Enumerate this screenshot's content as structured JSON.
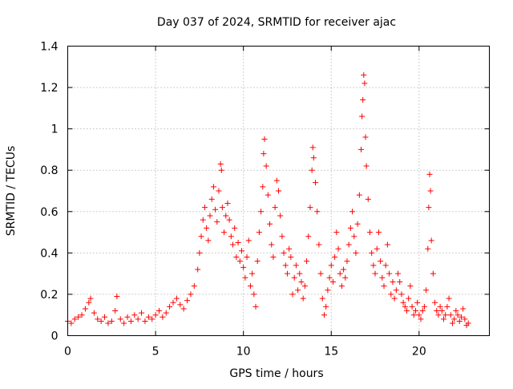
{
  "chart_data": {
    "type": "scatter",
    "title": "Day 037 of 2024, SRMTID for receiver ajac",
    "xlabel": "GPS time / hours",
    "ylabel": "SRMTID / TECUs",
    "xlim": [
      0,
      24
    ],
    "ylim": [
      0,
      1.4
    ],
    "xticks": [
      0,
      5,
      10,
      15,
      20
    ],
    "xtick_labels": [
      "0",
      "5",
      "10",
      "15",
      "20"
    ],
    "yticks": [
      0,
      0.2,
      0.4,
      0.6,
      0.8,
      1.0,
      1.2,
      1.4
    ],
    "ytick_labels": [
      "0",
      "0.2",
      "0.4",
      "0.6",
      "0.8",
      "1",
      "1.2",
      "1.4"
    ],
    "grid": true,
    "marker": "+",
    "color": "#ff0000",
    "series": [
      {
        "name": "SRMTID",
        "points": [
          [
            0.0,
            0.07
          ],
          [
            0.2,
            0.06
          ],
          [
            0.4,
            0.08
          ],
          [
            0.6,
            0.09
          ],
          [
            0.8,
            0.1
          ],
          [
            1.0,
            0.13
          ],
          [
            1.2,
            0.16
          ],
          [
            1.3,
            0.18
          ],
          [
            1.5,
            0.11
          ],
          [
            1.7,
            0.08
          ],
          [
            1.9,
            0.07
          ],
          [
            2.1,
            0.09
          ],
          [
            2.3,
            0.06
          ],
          [
            2.5,
            0.07
          ],
          [
            2.7,
            0.12
          ],
          [
            2.8,
            0.19
          ],
          [
            3.0,
            0.08
          ],
          [
            3.2,
            0.06
          ],
          [
            3.4,
            0.09
          ],
          [
            3.6,
            0.07
          ],
          [
            3.8,
            0.1
          ],
          [
            4.0,
            0.08
          ],
          [
            4.2,
            0.11
          ],
          [
            4.4,
            0.07
          ],
          [
            4.6,
            0.09
          ],
          [
            4.8,
            0.08
          ],
          [
            5.0,
            0.1
          ],
          [
            5.2,
            0.12
          ],
          [
            5.4,
            0.09
          ],
          [
            5.6,
            0.11
          ],
          [
            5.8,
            0.14
          ],
          [
            6.0,
            0.16
          ],
          [
            6.2,
            0.18
          ],
          [
            6.4,
            0.15
          ],
          [
            6.6,
            0.13
          ],
          [
            6.8,
            0.17
          ],
          [
            7.0,
            0.2
          ],
          [
            7.2,
            0.24
          ],
          [
            7.4,
            0.32
          ],
          [
            7.5,
            0.4
          ],
          [
            7.6,
            0.48
          ],
          [
            7.7,
            0.56
          ],
          [
            7.8,
            0.62
          ],
          [
            7.9,
            0.52
          ],
          [
            8.0,
            0.46
          ],
          [
            8.1,
            0.58
          ],
          [
            8.2,
            0.66
          ],
          [
            8.3,
            0.72
          ],
          [
            8.4,
            0.61
          ],
          [
            8.5,
            0.55
          ],
          [
            8.6,
            0.7
          ],
          [
            8.7,
            0.83
          ],
          [
            8.75,
            0.8
          ],
          [
            8.8,
            0.62
          ],
          [
            8.9,
            0.5
          ],
          [
            9.0,
            0.58
          ],
          [
            9.1,
            0.64
          ],
          [
            9.2,
            0.56
          ],
          [
            9.3,
            0.48
          ],
          [
            9.4,
            0.44
          ],
          [
            9.5,
            0.52
          ],
          [
            9.6,
            0.38
          ],
          [
            9.7,
            0.45
          ],
          [
            9.8,
            0.36
          ],
          [
            9.9,
            0.41
          ],
          [
            10.0,
            0.33
          ],
          [
            10.1,
            0.28
          ],
          [
            10.2,
            0.38
          ],
          [
            10.3,
            0.46
          ],
          [
            10.4,
            0.24
          ],
          [
            10.5,
            0.3
          ],
          [
            10.6,
            0.2
          ],
          [
            10.7,
            0.14
          ],
          [
            10.8,
            0.36
          ],
          [
            10.9,
            0.5
          ],
          [
            11.0,
            0.6
          ],
          [
            11.1,
            0.72
          ],
          [
            11.15,
            0.88
          ],
          [
            11.2,
            0.95
          ],
          [
            11.3,
            0.82
          ],
          [
            11.4,
            0.68
          ],
          [
            11.5,
            0.54
          ],
          [
            11.6,
            0.44
          ],
          [
            11.7,
            0.38
          ],
          [
            11.8,
            0.62
          ],
          [
            11.9,
            0.75
          ],
          [
            12.0,
            0.7
          ],
          [
            12.1,
            0.58
          ],
          [
            12.2,
            0.48
          ],
          [
            12.3,
            0.4
          ],
          [
            12.4,
            0.34
          ],
          [
            12.5,
            0.3
          ],
          [
            12.6,
            0.42
          ],
          [
            12.7,
            0.38
          ],
          [
            12.8,
            0.2
          ],
          [
            12.9,
            0.28
          ],
          [
            13.0,
            0.34
          ],
          [
            13.1,
            0.22
          ],
          [
            13.2,
            0.3
          ],
          [
            13.3,
            0.26
          ],
          [
            13.4,
            0.18
          ],
          [
            13.5,
            0.24
          ],
          [
            13.6,
            0.36
          ],
          [
            13.7,
            0.48
          ],
          [
            13.8,
            0.62
          ],
          [
            13.9,
            0.8
          ],
          [
            13.95,
            0.91
          ],
          [
            14.0,
            0.86
          ],
          [
            14.1,
            0.74
          ],
          [
            14.2,
            0.6
          ],
          [
            14.3,
            0.44
          ],
          [
            14.4,
            0.3
          ],
          [
            14.5,
            0.18
          ],
          [
            14.6,
            0.1
          ],
          [
            14.7,
            0.14
          ],
          [
            14.8,
            0.22
          ],
          [
            14.9,
            0.28
          ],
          [
            15.0,
            0.34
          ],
          [
            15.1,
            0.26
          ],
          [
            15.2,
            0.38
          ],
          [
            15.3,
            0.5
          ],
          [
            15.4,
            0.42
          ],
          [
            15.5,
            0.3
          ],
          [
            15.6,
            0.24
          ],
          [
            15.7,
            0.32
          ],
          [
            15.8,
            0.28
          ],
          [
            15.9,
            0.36
          ],
          [
            16.0,
            0.44
          ],
          [
            16.1,
            0.52
          ],
          [
            16.2,
            0.6
          ],
          [
            16.3,
            0.48
          ],
          [
            16.4,
            0.4
          ],
          [
            16.5,
            0.54
          ],
          [
            16.6,
            0.68
          ],
          [
            16.7,
            0.9
          ],
          [
            16.75,
            1.06
          ],
          [
            16.8,
            1.14
          ],
          [
            16.85,
            1.26
          ],
          [
            16.9,
            1.22
          ],
          [
            16.95,
            0.96
          ],
          [
            17.0,
            0.82
          ],
          [
            17.1,
            0.66
          ],
          [
            17.2,
            0.5
          ],
          [
            17.3,
            0.4
          ],
          [
            17.4,
            0.34
          ],
          [
            17.5,
            0.3
          ],
          [
            17.6,
            0.42
          ],
          [
            17.7,
            0.5
          ],
          [
            17.8,
            0.36
          ],
          [
            17.9,
            0.28
          ],
          [
            18.0,
            0.24
          ],
          [
            18.1,
            0.34
          ],
          [
            18.2,
            0.44
          ],
          [
            18.3,
            0.3
          ],
          [
            18.4,
            0.2
          ],
          [
            18.5,
            0.26
          ],
          [
            18.6,
            0.18
          ],
          [
            18.7,
            0.22
          ],
          [
            18.8,
            0.3
          ],
          [
            18.9,
            0.26
          ],
          [
            19.0,
            0.2
          ],
          [
            19.1,
            0.16
          ],
          [
            19.2,
            0.14
          ],
          [
            19.3,
            0.12
          ],
          [
            19.4,
            0.18
          ],
          [
            19.5,
            0.24
          ],
          [
            19.6,
            0.14
          ],
          [
            19.7,
            0.1
          ],
          [
            19.8,
            0.12
          ],
          [
            19.9,
            0.16
          ],
          [
            20.0,
            0.1
          ],
          [
            20.1,
            0.08
          ],
          [
            20.2,
            0.12
          ],
          [
            20.3,
            0.14
          ],
          [
            20.4,
            0.22
          ],
          [
            20.5,
            0.42
          ],
          [
            20.55,
            0.62
          ],
          [
            20.6,
            0.78
          ],
          [
            20.65,
            0.7
          ],
          [
            20.7,
            0.46
          ],
          [
            20.8,
            0.3
          ],
          [
            20.9,
            0.16
          ],
          [
            21.0,
            0.12
          ],
          [
            21.1,
            0.1
          ],
          [
            21.2,
            0.14
          ],
          [
            21.3,
            0.12
          ],
          [
            21.4,
            0.08
          ],
          [
            21.5,
            0.1
          ],
          [
            21.6,
            0.14
          ],
          [
            21.7,
            0.18
          ],
          [
            21.8,
            0.1
          ],
          [
            21.9,
            0.06
          ],
          [
            22.0,
            0.08
          ],
          [
            22.1,
            0.12
          ],
          [
            22.2,
            0.1
          ],
          [
            22.3,
            0.07
          ],
          [
            22.4,
            0.09
          ],
          [
            22.5,
            0.13
          ],
          [
            22.6,
            0.08
          ],
          [
            22.7,
            0.05
          ],
          [
            22.8,
            0.06
          ]
        ]
      }
    ]
  }
}
